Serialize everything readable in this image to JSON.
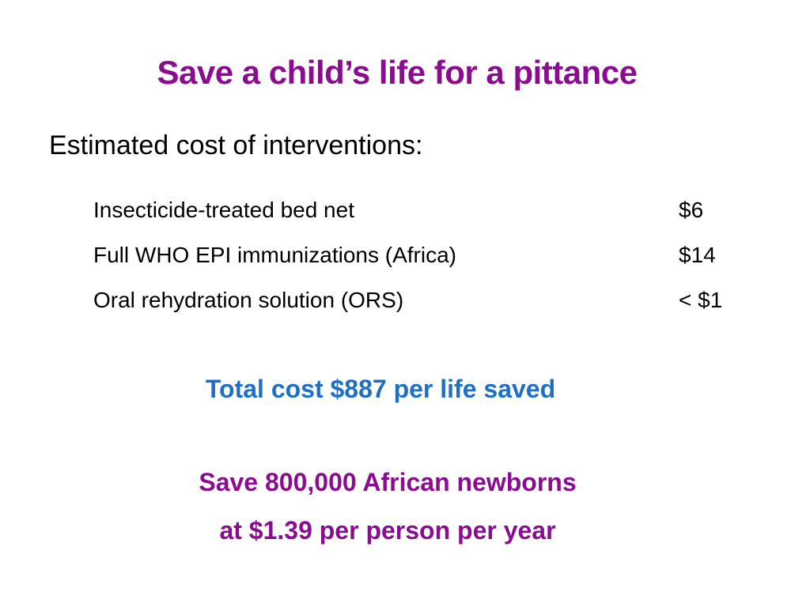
{
  "slide": {
    "title": "Save a child’s life for a pittance",
    "subtitle": "Estimated cost of interventions:",
    "interventions": [
      {
        "label": "Insecticide-treated bed net",
        "cost": "$6"
      },
      {
        "label": "Full WHO EPI immunizations (Africa)",
        "cost": "$14"
      },
      {
        "label": "Oral rehydration solution (ORS)",
        "cost": "< $1"
      }
    ],
    "total": "Total cost $887 per life saved",
    "save_lines": [
      "Save 800,000 African newborns",
      "at $1.39 per person per year"
    ]
  },
  "colors": {
    "title": "#8b0d8f",
    "total": "#1f6fc5",
    "save_lines": "#8b0d8f"
  }
}
